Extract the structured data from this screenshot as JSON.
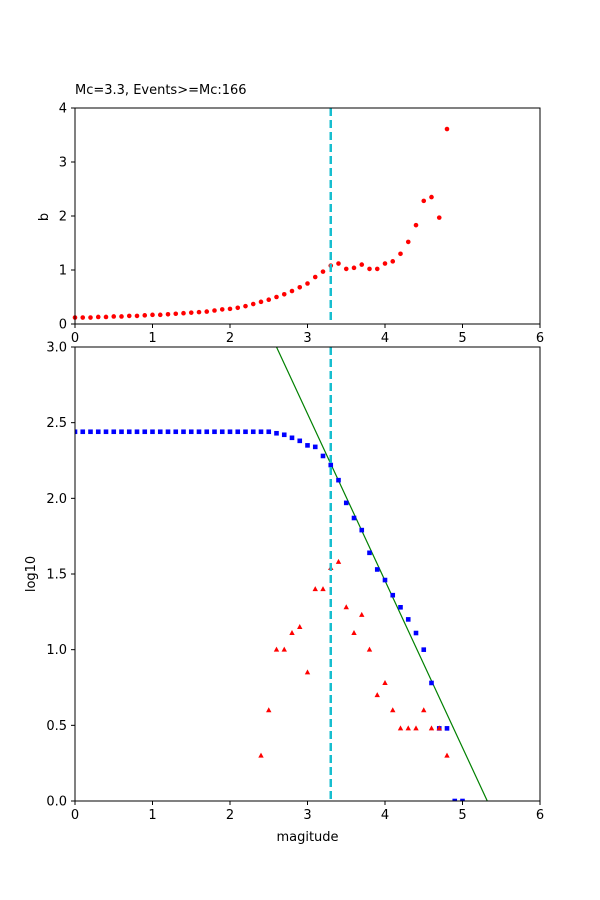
{
  "chart_data": [
    {
      "type": "scatter",
      "title": "Mc=3.3, Events>=Mc:166",
      "xlabel": "",
      "ylabel": "b",
      "xlim": [
        0,
        6
      ],
      "ylim": [
        0,
        4
      ],
      "xticks": [
        "0",
        "1",
        "2",
        "3",
        "4",
        "5",
        "6"
      ],
      "yticks": [
        "0",
        "1",
        "2",
        "3",
        "4"
      ],
      "grid": false,
      "colors": {
        "points": "#ff0000",
        "mc_line": "#17becf"
      },
      "mc": 3.3,
      "series": [
        {
          "marker": "circle",
          "x": [
            0.0,
            0.1,
            0.2,
            0.3,
            0.4,
            0.5,
            0.6,
            0.7,
            0.8,
            0.9,
            1.0,
            1.1,
            1.2,
            1.3,
            1.4,
            1.5,
            1.6,
            1.7,
            1.8,
            1.9,
            2.0,
            2.1,
            2.2,
            2.3,
            2.4,
            2.5,
            2.6,
            2.7,
            2.8,
            2.9,
            3.0,
            3.1,
            3.2,
            3.3,
            3.4,
            3.5,
            3.6,
            3.7,
            3.8,
            3.9,
            4.0,
            4.1,
            4.2,
            4.3,
            4.4,
            4.5,
            4.6,
            4.7,
            4.8
          ],
          "y": [
            0.12,
            0.12,
            0.12,
            0.13,
            0.13,
            0.14,
            0.14,
            0.15,
            0.15,
            0.16,
            0.17,
            0.17,
            0.18,
            0.19,
            0.2,
            0.21,
            0.22,
            0.23,
            0.25,
            0.27,
            0.28,
            0.3,
            0.33,
            0.37,
            0.41,
            0.45,
            0.5,
            0.55,
            0.61,
            0.68,
            0.75,
            0.87,
            0.97,
            1.08,
            1.12,
            1.02,
            1.04,
            1.1,
            1.02,
            1.02,
            1.12,
            1.16,
            1.3,
            1.52,
            1.83,
            2.28,
            2.35,
            1.97,
            3.61
          ]
        }
      ]
    },
    {
      "type": "scatter",
      "title": "",
      "xlabel": "magitude",
      "ylabel": "log10",
      "xlim": [
        0,
        6
      ],
      "ylim": [
        0,
        3.0
      ],
      "xticks": [
        "0",
        "1",
        "2",
        "3",
        "4",
        "5",
        "6"
      ],
      "yticks": [
        "0.0",
        "0.5",
        "1.0",
        "1.5",
        "2.0",
        "2.5",
        "3.0"
      ],
      "grid": false,
      "colors": {
        "cumulative": "#0000ff",
        "noncumulative": "#ff0000",
        "fit": "#008000",
        "mc_line": "#17becf"
      },
      "mc": 3.3,
      "fit_line": {
        "x": [
          2.6,
          5.32
        ],
        "y": [
          3.0,
          0.0
        ]
      },
      "series": [
        {
          "marker": "square",
          "x": [
            0.0,
            0.1,
            0.2,
            0.3,
            0.4,
            0.5,
            0.6,
            0.7,
            0.8,
            0.9,
            1.0,
            1.1,
            1.2,
            1.3,
            1.4,
            1.5,
            1.6,
            1.7,
            1.8,
            1.9,
            2.0,
            2.1,
            2.2,
            2.3,
            2.4,
            2.5,
            2.6,
            2.7,
            2.8,
            2.9,
            3.0,
            3.1,
            3.2,
            3.3,
            3.4,
            3.5,
            3.6,
            3.7,
            3.8,
            3.9,
            4.0,
            4.1,
            4.2,
            4.3,
            4.4,
            4.5,
            4.6,
            4.7,
            4.8,
            4.9,
            5.0
          ],
          "y": [
            2.44,
            2.44,
            2.44,
            2.44,
            2.44,
            2.44,
            2.44,
            2.44,
            2.44,
            2.44,
            2.44,
            2.44,
            2.44,
            2.44,
            2.44,
            2.44,
            2.44,
            2.44,
            2.44,
            2.44,
            2.44,
            2.44,
            2.44,
            2.44,
            2.44,
            2.44,
            2.43,
            2.42,
            2.4,
            2.38,
            2.35,
            2.34,
            2.28,
            2.22,
            2.12,
            1.97,
            1.87,
            1.79,
            1.64,
            1.53,
            1.46,
            1.36,
            1.28,
            1.2,
            1.11,
            1.0,
            0.78,
            0.48,
            0.48,
            0.0,
            0.0
          ]
        },
        {
          "marker": "triangle",
          "x": [
            2.4,
            2.5,
            2.6,
            2.7,
            2.8,
            2.9,
            3.0,
            3.1,
            3.2,
            3.3,
            3.4,
            3.5,
            3.6,
            3.7,
            3.8,
            3.9,
            4.0,
            4.1,
            4.2,
            4.3,
            4.4,
            4.5,
            4.6,
            4.7,
            4.8
          ],
          "y": [
            0.3,
            0.6,
            1.0,
            1.0,
            1.11,
            1.15,
            0.85,
            1.4,
            1.4,
            1.54,
            1.58,
            1.28,
            1.11,
            1.23,
            1.0,
            0.7,
            0.78,
            0.6,
            0.48,
            0.48,
            0.48,
            0.6,
            0.48,
            0.48,
            0.3
          ]
        }
      ]
    }
  ]
}
